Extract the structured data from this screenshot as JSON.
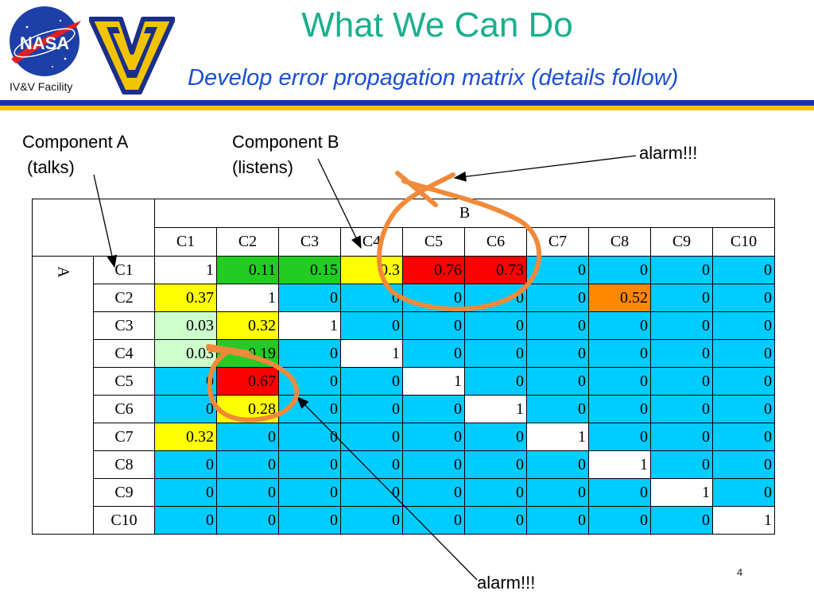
{
  "header": {
    "title": "What We Can Do",
    "subtitle": "Develop error propagation matrix (details follow)",
    "facility_label": "IV&V Facility",
    "logos": {
      "left": "nasa-logo",
      "right": "wv-logo"
    },
    "rule_colors": [
      "#1d2fb8",
      "#f2c400"
    ]
  },
  "callouts": {
    "component_a": [
      "Component A",
      "(talks)"
    ],
    "component_b": [
      "Component B",
      "(listens)"
    ],
    "alarm_top": "alarm!!!",
    "alarm_bottom": "alarm!!!"
  },
  "matrix": {
    "col_group_label": "B",
    "row_group_label": "A",
    "columns": [
      "C1",
      "C2",
      "C3",
      "C4",
      "C5",
      "C6",
      "C7",
      "C8",
      "C9",
      "C10"
    ],
    "rows": [
      {
        "label": "C1",
        "values": [
          "1",
          "0.11",
          "0.15",
          "0.3",
          "0.76",
          "0.73",
          "0",
          "0",
          "0",
          "0"
        ],
        "colors": [
          "#ffffff",
          "#22cc22",
          "#22cc22",
          "#ffff00",
          "#ff0000",
          "#ff0000",
          "#00ccff",
          "#00ccff",
          "#00ccff",
          "#00ccff"
        ]
      },
      {
        "label": "C2",
        "values": [
          "0.37",
          "1",
          "0",
          "0",
          "0",
          "0",
          "0",
          "0.52",
          "0",
          "0"
        ],
        "colors": [
          "#ffff00",
          "#ffffff",
          "#00ccff",
          "#00ccff",
          "#00ccff",
          "#00ccff",
          "#00ccff",
          "#ff8800",
          "#00ccff",
          "#00ccff"
        ]
      },
      {
        "label": "C3",
        "values": [
          "0.03",
          "0.32",
          "1",
          "0",
          "0",
          "0",
          "0",
          "0",
          "0",
          "0"
        ],
        "colors": [
          "#ccffcc",
          "#ffff00",
          "#ffffff",
          "#00ccff",
          "#00ccff",
          "#00ccff",
          "#00ccff",
          "#00ccff",
          "#00ccff",
          "#00ccff"
        ]
      },
      {
        "label": "C4",
        "values": [
          "0.03",
          "0.19",
          "0",
          "1",
          "0",
          "0",
          "0",
          "0",
          "0",
          "0"
        ],
        "colors": [
          "#ccffcc",
          "#22cc22",
          "#00ccff",
          "#ffffff",
          "#00ccff",
          "#00ccff",
          "#00ccff",
          "#00ccff",
          "#00ccff",
          "#00ccff"
        ]
      },
      {
        "label": "C5",
        "values": [
          "0",
          "0.67",
          "0",
          "0",
          "1",
          "0",
          "0",
          "0",
          "0",
          "0"
        ],
        "colors": [
          "#00ccff",
          "#ff0000",
          "#00ccff",
          "#00ccff",
          "#ffffff",
          "#00ccff",
          "#00ccff",
          "#00ccff",
          "#00ccff",
          "#00ccff"
        ]
      },
      {
        "label": "C6",
        "values": [
          "0",
          "0.28",
          "0",
          "0",
          "0",
          "1",
          "0",
          "0",
          "0",
          "0"
        ],
        "colors": [
          "#00ccff",
          "#ffff00",
          "#00ccff",
          "#00ccff",
          "#00ccff",
          "#ffffff",
          "#00ccff",
          "#00ccff",
          "#00ccff",
          "#00ccff"
        ]
      },
      {
        "label": "C7",
        "values": [
          "0.32",
          "0",
          "0",
          "0",
          "0",
          "0",
          "1",
          "0",
          "0",
          "0"
        ],
        "colors": [
          "#ffff00",
          "#00ccff",
          "#00ccff",
          "#00ccff",
          "#00ccff",
          "#00ccff",
          "#ffffff",
          "#00ccff",
          "#00ccff",
          "#00ccff"
        ]
      },
      {
        "label": "C8",
        "values": [
          "0",
          "0",
          "0",
          "0",
          "0",
          "0",
          "0",
          "1",
          "0",
          "0"
        ],
        "colors": [
          "#00ccff",
          "#00ccff",
          "#00ccff",
          "#00ccff",
          "#00ccff",
          "#00ccff",
          "#00ccff",
          "#ffffff",
          "#00ccff",
          "#00ccff"
        ]
      },
      {
        "label": "C9",
        "values": [
          "0",
          "0",
          "0",
          "0",
          "0",
          "0",
          "0",
          "0",
          "1",
          "0"
        ],
        "colors": [
          "#00ccff",
          "#00ccff",
          "#00ccff",
          "#00ccff",
          "#00ccff",
          "#00ccff",
          "#00ccff",
          "#00ccff",
          "#ffffff",
          "#00ccff"
        ]
      },
      {
        "label": "C10",
        "values": [
          "0",
          "0",
          "0",
          "0",
          "0",
          "0",
          "0",
          "0",
          "0",
          "1"
        ],
        "colors": [
          "#00ccff",
          "#00ccff",
          "#00ccff",
          "#00ccff",
          "#00ccff",
          "#00ccff",
          "#00ccff",
          "#00ccff",
          "#00ccff",
          "#ffffff"
        ]
      }
    ]
  },
  "annotation_color": "#f08a3a",
  "page_number": "4"
}
